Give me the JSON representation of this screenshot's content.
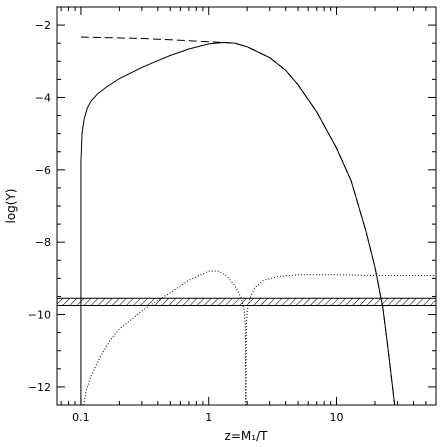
{
  "chart_data": {
    "type": "line",
    "xlabel": "z=M₁/T",
    "ylabel": "log(Y)",
    "xscale": "log",
    "xlim": [
      0.065,
      60
    ],
    "ylim": [
      -12.5,
      -1.5
    ],
    "xticks": [
      {
        "value": 0.1,
        "label": "0.1"
      },
      {
        "value": 1,
        "label": "1"
      },
      {
        "value": 10,
        "label": "10"
      }
    ],
    "yticks": [
      {
        "value": -2,
        "label": "−2"
      },
      {
        "value": -4,
        "label": "−4"
      },
      {
        "value": -6,
        "label": "−6"
      },
      {
        "value": -8,
        "label": "−8"
      },
      {
        "value": -10,
        "label": "−10"
      },
      {
        "value": -12,
        "label": "−12"
      }
    ],
    "grid": false,
    "legend": "none",
    "band": {
      "y_range": [
        -9.75,
        -9.55
      ],
      "style": "hatched"
    },
    "series": [
      {
        "style": "solid",
        "points": [
          [
            0.1,
            -12.5
          ],
          [
            0.1,
            -5.8
          ],
          [
            0.102,
            -5.0
          ],
          [
            0.106,
            -4.6
          ],
          [
            0.112,
            -4.3
          ],
          [
            0.12,
            -4.1
          ],
          [
            0.135,
            -3.9
          ],
          [
            0.16,
            -3.7
          ],
          [
            0.2,
            -3.48
          ],
          [
            0.3,
            -3.17
          ],
          [
            0.4,
            -2.98
          ],
          [
            0.5,
            -2.84
          ],
          [
            0.7,
            -2.66
          ],
          [
            1.0,
            -2.52
          ],
          [
            1.3,
            -2.48
          ],
          [
            1.6,
            -2.5
          ],
          [
            2.0,
            -2.6
          ],
          [
            3.0,
            -2.9
          ],
          [
            4.0,
            -3.25
          ],
          [
            5.0,
            -3.65
          ],
          [
            7.0,
            -4.4
          ],
          [
            10.0,
            -5.4
          ],
          [
            13.0,
            -6.3
          ],
          [
            17.0,
            -7.7
          ],
          [
            20.0,
            -8.7
          ],
          [
            23.0,
            -9.8
          ],
          [
            25.0,
            -10.8
          ],
          [
            27.0,
            -11.8
          ],
          [
            28.5,
            -12.5
          ]
        ]
      },
      {
        "style": "dashed",
        "points": [
          [
            0.1,
            -2.33
          ],
          [
            0.3,
            -2.37
          ],
          [
            0.6,
            -2.42
          ],
          [
            1.0,
            -2.46
          ],
          [
            1.3,
            -2.48
          ],
          [
            1.6,
            -2.5
          ],
          [
            2.0,
            -2.6
          ],
          [
            3.0,
            -2.9
          ],
          [
            4.0,
            -3.25
          ],
          [
            5.0,
            -3.65
          ],
          [
            7.0,
            -4.4
          ],
          [
            10.0,
            -5.4
          ],
          [
            13.0,
            -6.3
          ],
          [
            17.0,
            -7.7
          ],
          [
            20.0,
            -8.7
          ],
          [
            23.0,
            -9.8
          ],
          [
            25.0,
            -10.8
          ],
          [
            27.0,
            -11.8
          ],
          [
            28.5,
            -12.5
          ]
        ]
      },
      {
        "style": "dotted",
        "points": [
          [
            0.105,
            -12.5
          ],
          [
            0.11,
            -12.1
          ],
          [
            0.12,
            -11.7
          ],
          [
            0.14,
            -11.2
          ],
          [
            0.17,
            -10.7
          ],
          [
            0.2,
            -10.4
          ],
          [
            0.3,
            -9.9
          ],
          [
            0.4,
            -9.6
          ],
          [
            0.5,
            -9.4
          ],
          [
            0.7,
            -9.05
          ],
          [
            1.0,
            -8.8
          ],
          [
            1.2,
            -8.8
          ],
          [
            1.4,
            -8.95
          ],
          [
            1.6,
            -9.2
          ],
          [
            1.8,
            -9.55
          ],
          [
            1.9,
            -9.9
          ],
          [
            1.93,
            -10.3
          ],
          [
            1.95,
            -12.5
          ]
        ]
      },
      {
        "style": "dotted",
        "points": [
          [
            1.95,
            -12.5
          ],
          [
            1.97,
            -10.3
          ],
          [
            2.0,
            -9.9
          ],
          [
            2.1,
            -9.55
          ],
          [
            2.3,
            -9.25
          ],
          [
            2.7,
            -9.05
          ],
          [
            3.5,
            -8.95
          ],
          [
            5.0,
            -8.9
          ],
          [
            10.0,
            -8.9
          ],
          [
            20.0,
            -8.92
          ],
          [
            60.0,
            -8.92
          ]
        ]
      }
    ]
  }
}
